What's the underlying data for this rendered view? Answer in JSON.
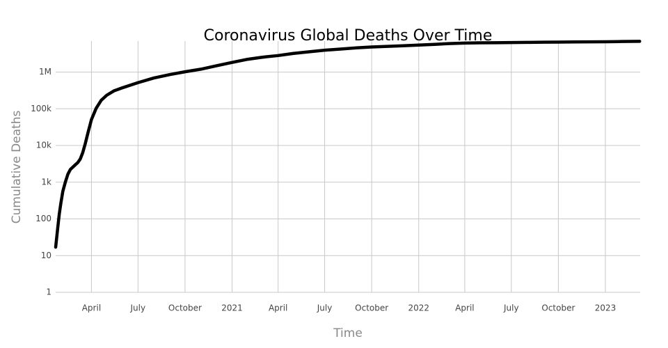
{
  "chart_data": {
    "type": "line",
    "title": "Coronavirus Global Deaths Over Time",
    "xlabel": "Time",
    "ylabel": "Cumulative Deaths",
    "log_y": true,
    "grid": true,
    "color": "#000000",
    "xlim": [
      "2020-01-22",
      "2023-03-10"
    ],
    "xticks": [
      {
        "value": "2020-04-01",
        "label": "April"
      },
      {
        "value": "2020-07-01",
        "label": "July"
      },
      {
        "value": "2020-10-01",
        "label": "October"
      },
      {
        "value": "2021-01-01",
        "label": "2021"
      },
      {
        "value": "2021-04-01",
        "label": "April"
      },
      {
        "value": "2021-07-01",
        "label": "July"
      },
      {
        "value": "2021-10-01",
        "label": "October"
      },
      {
        "value": "2022-01-01",
        "label": "2022"
      },
      {
        "value": "2022-04-01",
        "label": "April"
      },
      {
        "value": "2022-07-01",
        "label": "July"
      },
      {
        "value": "2022-10-01",
        "label": "October"
      },
      {
        "value": "2023-01-01",
        "label": "2023"
      }
    ],
    "ylim": [
      1,
      7000000
    ],
    "yticks": [
      1,
      10,
      100,
      {
        "value": 1000,
        "label": "1k"
      },
      {
        "value": 10000,
        "label": "10k"
      },
      {
        "value": 100000,
        "label": "100k"
      },
      {
        "value": 1000000,
        "label": "1M"
      }
    ],
    "x": [
      "2020-01-22",
      "2020-01-26",
      "2020-01-29",
      "2020-02-01",
      "2020-02-05",
      "2020-02-10",
      "2020-02-15",
      "2020-02-20",
      "2020-02-29",
      "2020-03-05",
      "2020-03-10",
      "2020-03-15",
      "2020-03-20",
      "2020-03-25",
      "2020-04-01",
      "2020-04-10",
      "2020-04-20",
      "2020-05-01",
      "2020-05-15",
      "2020-06-01",
      "2020-07-01",
      "2020-08-01",
      "2020-09-01",
      "2020-10-01",
      "2020-11-01",
      "2020-12-01",
      "2021-01-01",
      "2021-02-01",
      "2021-03-01",
      "2021-04-01",
      "2021-05-01",
      "2021-06-01",
      "2021-07-01",
      "2021-08-01",
      "2021-09-01",
      "2021-10-01",
      "2021-11-01",
      "2021-12-01",
      "2022-01-01",
      "2022-02-01",
      "2022-03-01",
      "2022-04-01",
      "2022-05-01",
      "2022-06-01",
      "2022-07-01",
      "2022-08-01",
      "2022-09-01",
      "2022-10-01",
      "2022-11-01",
      "2022-12-01",
      "2023-01-01",
      "2023-02-01",
      "2023-03-09"
    ],
    "values": [
      17,
      56,
      133,
      259,
      565,
      1013,
      1666,
      2247,
      2941,
      3400,
      4262,
      6440,
      11400,
      21800,
      51000,
      102000,
      170000,
      235000,
      308000,
      375000,
      515000,
      690000,
      855000,
      1020000,
      1200000,
      1480000,
      1830000,
      2240000,
      2540000,
      2820000,
      3220000,
      3580000,
      3950000,
      4240000,
      4570000,
      4820000,
      5030000,
      5220000,
      5440000,
      5700000,
      5980000,
      6160000,
      6260000,
      6320000,
      6370000,
      6440000,
      6510000,
      6560000,
      6610000,
      6650000,
      6710000,
      6800000,
      6880000
    ]
  }
}
